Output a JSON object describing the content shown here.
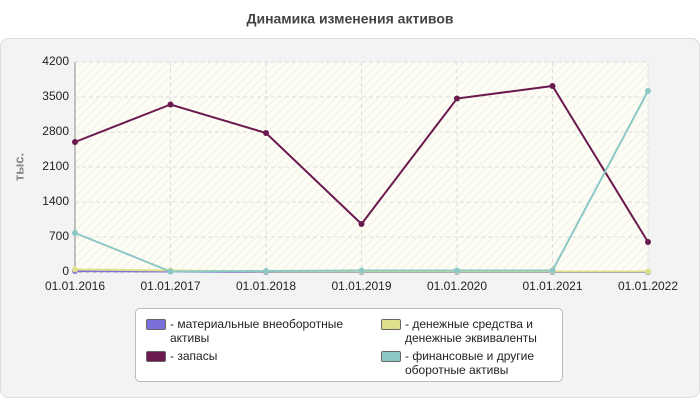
{
  "chart_data": {
    "type": "line",
    "title": "Динамика изменения активов",
    "y_label": "тыс.",
    "categories": [
      "01.01.2016",
      "01.01.2017",
      "01.01.2018",
      "01.01.2019",
      "01.01.2020",
      "01.01.2021",
      "01.01.2022"
    ],
    "series": [
      {
        "name": "материальные внеоборотные активы",
        "color": "#7b6fdb",
        "values": [
          20,
          10,
          0,
          0,
          0,
          0,
          0
        ]
      },
      {
        "name": "запасы",
        "color": "#6b1a4f",
        "values": [
          2600,
          3350,
          2780,
          960,
          3470,
          3720,
          600
        ]
      },
      {
        "name": "денежные средства и денежные эквиваленты",
        "color": "#e0e08a",
        "values": [
          50,
          30,
          10,
          10,
          10,
          10,
          10
        ]
      },
      {
        "name": "финансовые и другие оборотные активы",
        "color": "#8cc8c4",
        "values": [
          780,
          10,
          20,
          30,
          30,
          30,
          3620
        ]
      }
    ],
    "ylim": [
      0,
      4200
    ],
    "yticks": [
      0,
      700,
      1400,
      2100,
      2800,
      3500,
      4200
    ],
    "grid": true
  }
}
